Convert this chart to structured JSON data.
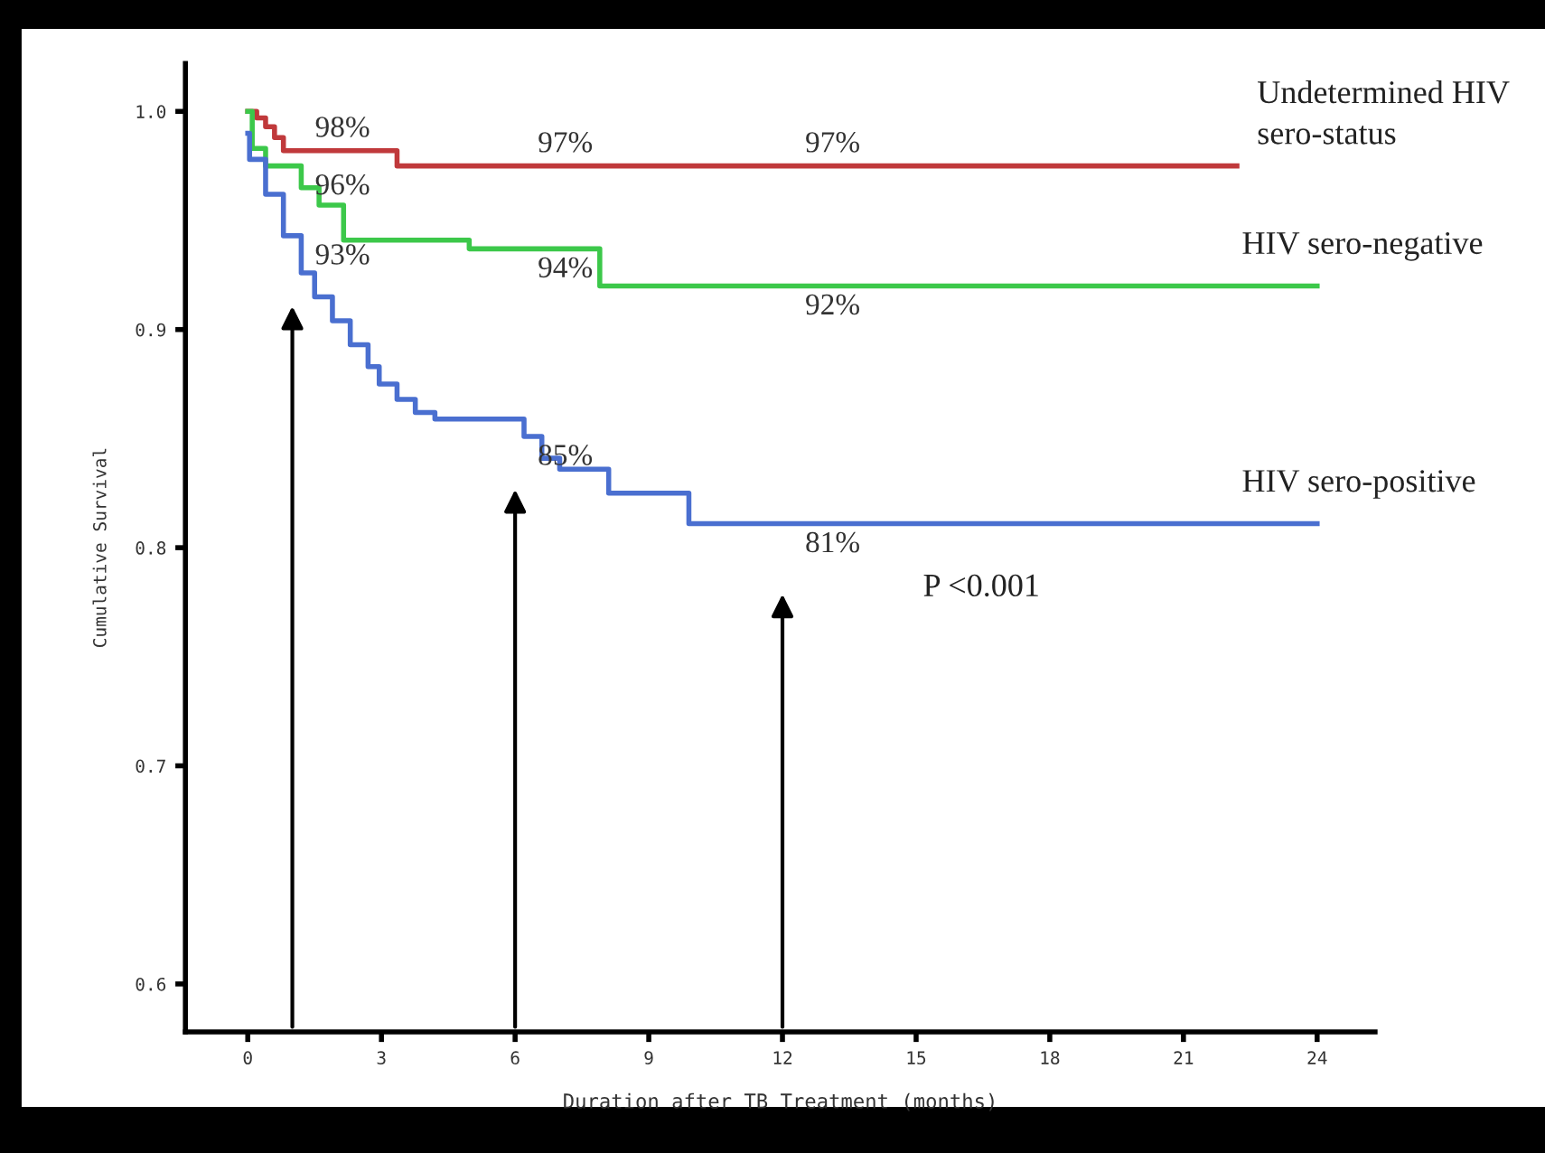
{
  "chart_data": {
    "type": "step",
    "xlabel": "Duration after TB Treatment (months)",
    "ylabel": "Cumulative Survival",
    "xlim": [
      -1.4,
      25.3
    ],
    "xticks": [
      0,
      3,
      6,
      9,
      12,
      15,
      18,
      21,
      24
    ],
    "ylim": [
      0.578,
      1.022
    ],
    "yticks": [
      {
        "value": 0.6,
        "label": "0.6"
      },
      {
        "value": 0.7,
        "label": "0.7"
      },
      {
        "value": 0.8,
        "label": "0.8"
      },
      {
        "value": 0.9,
        "label": "0.9"
      },
      {
        "value": 1.0,
        "label": "1.0"
      }
    ],
    "grid": false,
    "marker": "none",
    "line_style": "solid",
    "series": [
      {
        "name": "Undetermined HIV\nsero-status",
        "color": "#c0393b",
        "x": [
          0,
          0.2,
          0.4,
          0.6,
          0.8,
          3.35,
          22.2
        ],
        "values": [
          1.0,
          0.997,
          0.993,
          0.988,
          0.982,
          0.975,
          0.975
        ]
      },
      {
        "name": "HIV sero-negative",
        "color": "#3cc84a",
        "x": [
          0,
          0.1,
          0.4,
          1.2,
          1.6,
          2.15,
          4.97,
          7.9,
          24
        ],
        "values": [
          1.0,
          0.983,
          0.975,
          0.965,
          0.957,
          0.941,
          0.937,
          0.92,
          0.92
        ]
      },
      {
        "name": "HIV sero-positive",
        "color": "#4a6fd0",
        "x": [
          0,
          0.04,
          0.4,
          0.8,
          1.2,
          1.5,
          1.9,
          2.3,
          2.7,
          2.95,
          3.35,
          3.76,
          4.2,
          5.66,
          6.2,
          6.6,
          7.0,
          8.1,
          9.9,
          24
        ],
        "values": [
          0.99,
          0.978,
          0.962,
          0.943,
          0.926,
          0.915,
          0.904,
          0.893,
          0.883,
          0.875,
          0.868,
          0.862,
          0.859,
          0.859,
          0.851,
          0.841,
          0.836,
          0.825,
          0.811,
          0.811
        ]
      }
    ],
    "annotations": [
      {
        "text": "98%",
        "x": 1,
        "y": 0.982
      },
      {
        "text": "96%",
        "x": 1,
        "y": 0.975
      },
      {
        "text": "93%",
        "x": 1,
        "y": 0.943
      },
      {
        "text": "97%",
        "x": 6,
        "y": 0.975
      },
      {
        "text": "94%",
        "x": 6,
        "y": 0.937
      },
      {
        "text": "85%",
        "x": 6,
        "y": 0.851
      },
      {
        "text": "97%",
        "x": 12,
        "y": 0.975
      },
      {
        "text": "92%",
        "x": 12,
        "y": 0.92
      },
      {
        "text": "81%",
        "x": 12,
        "y": 0.811
      },
      "P <0.001"
    ]
  }
}
